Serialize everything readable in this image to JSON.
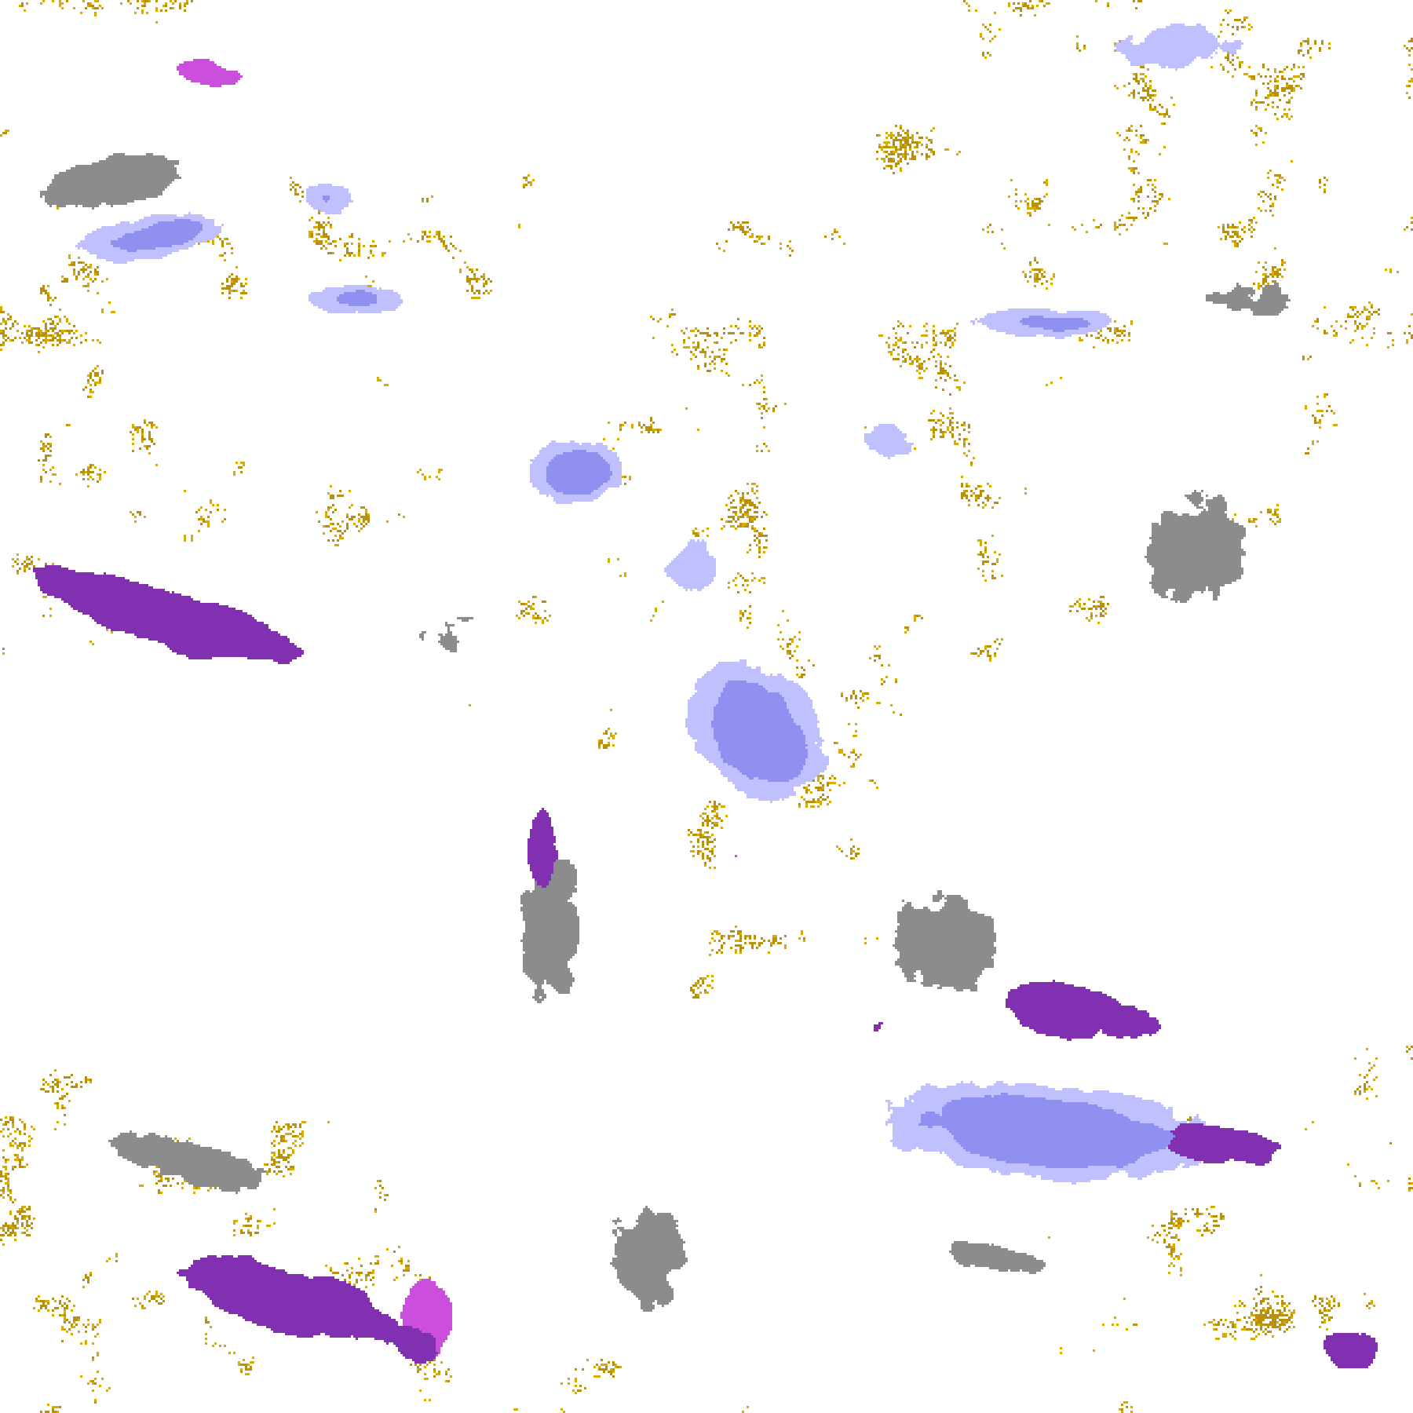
{
  "map": {
    "kind": "satellite cloud classification imagery",
    "palette": {
      "clear": "#ffffff",
      "gold": "#d8ac00",
      "gold_dark": "#b8900c",
      "purple": "#8030b0",
      "magenta": "#cc4edc",
      "gray": "#a0a0a0",
      "gray_dark": "#8c8c8c",
      "lavender": "#f0f0ff",
      "periwinkle": "#c0c0ff",
      "blue": "#9090f0"
    }
  }
}
